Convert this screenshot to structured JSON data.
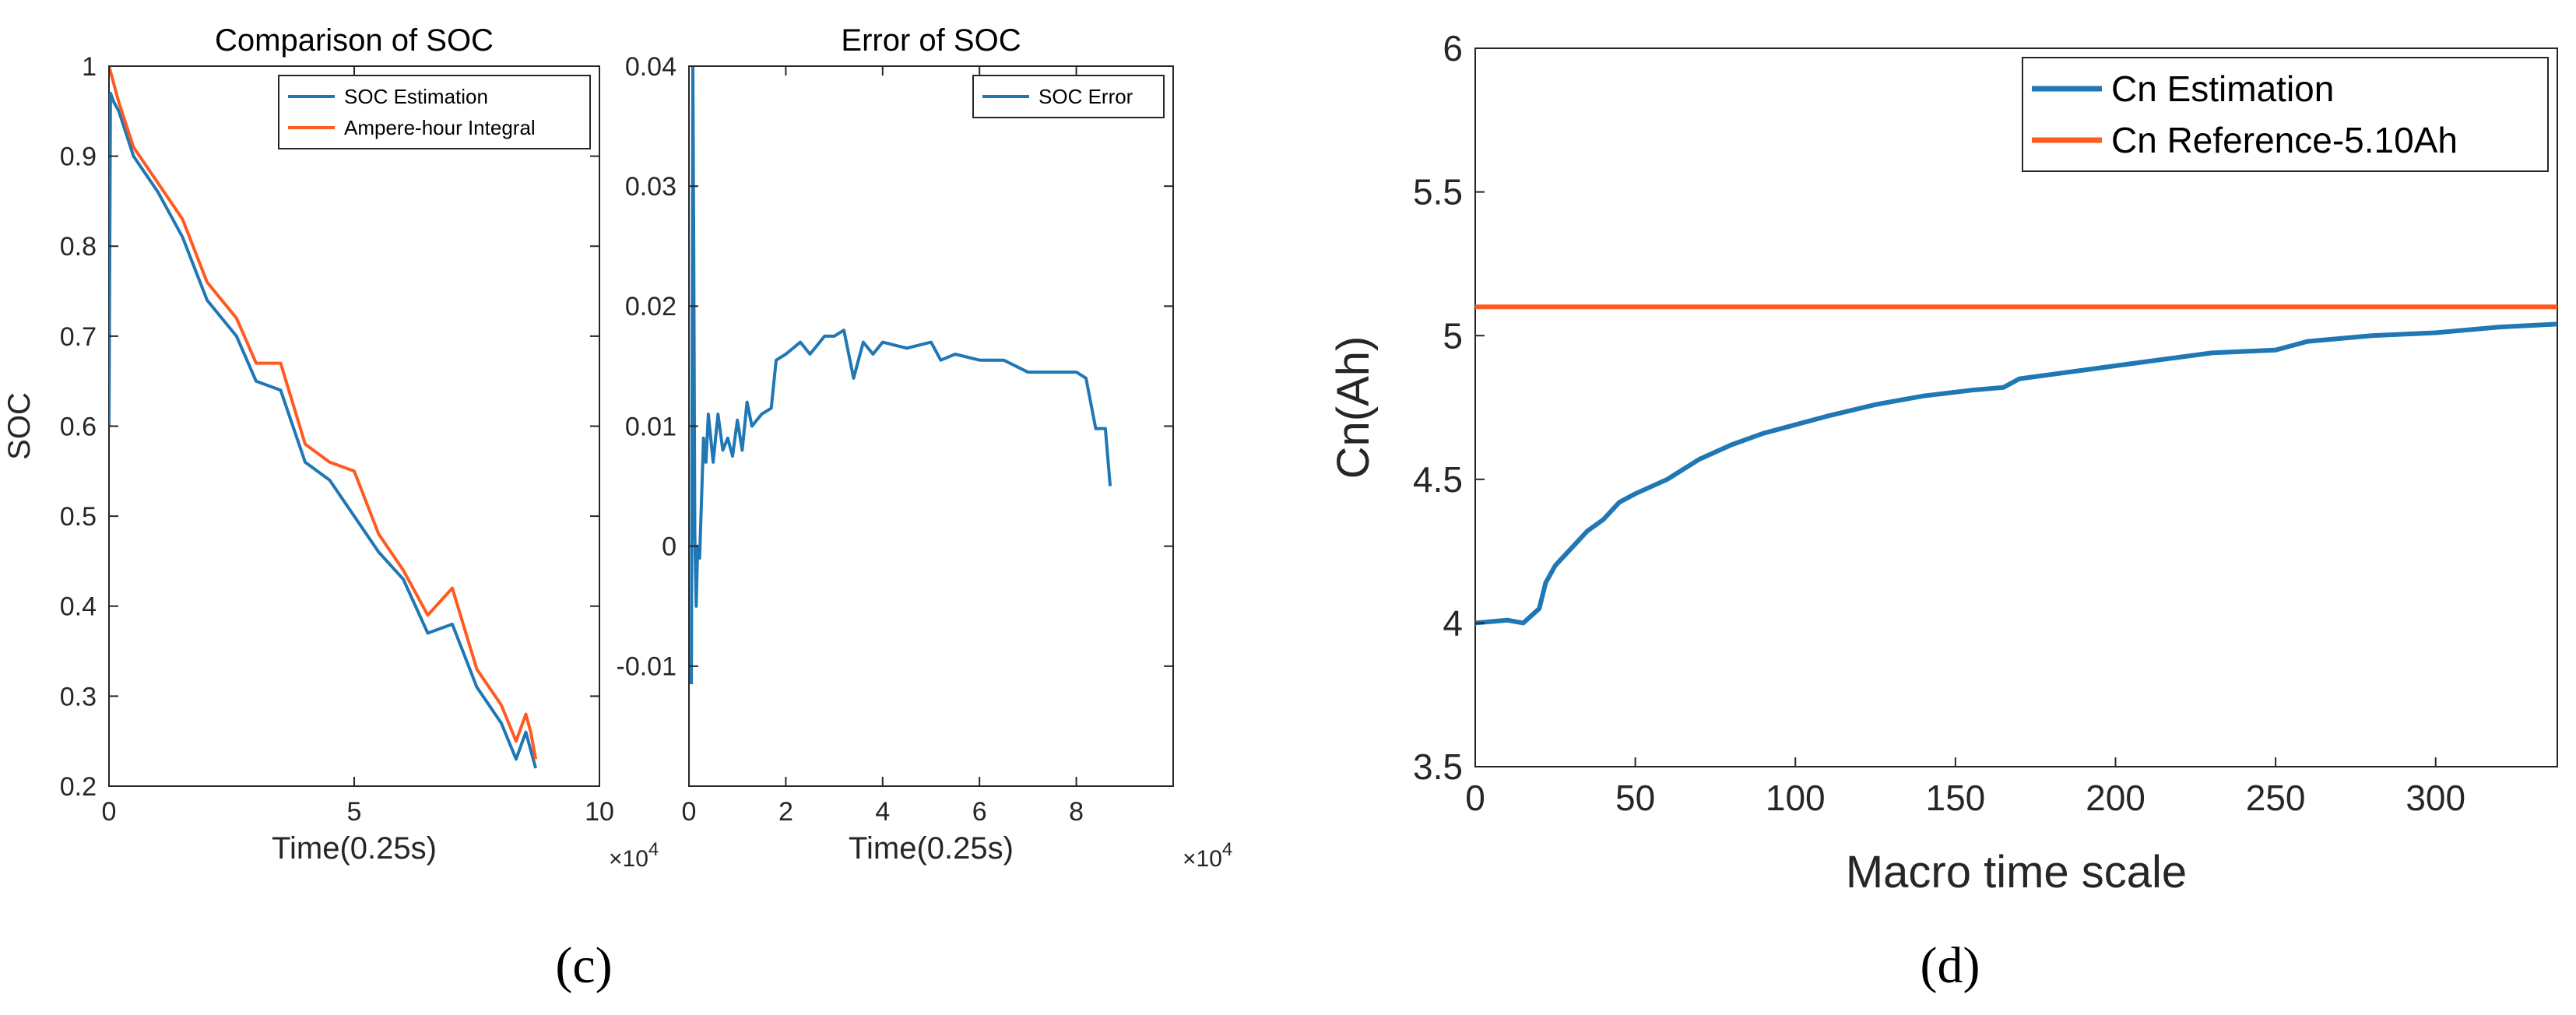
{
  "colors": {
    "blue": "#1f77b4",
    "orange": "#ff5a1f",
    "axis": "#262626",
    "text": "#262626"
  },
  "panels": [
    {
      "id": "c",
      "label": "(c)"
    },
    {
      "id": "d",
      "label": "(d)"
    }
  ],
  "chart_data": [
    {
      "type": "line",
      "panel": "c",
      "title": "Comparison of SOC",
      "xlabel": "Time(0.25s)",
      "ylabel": "SOC",
      "x_exponent": "×10^4",
      "xlim": [
        0,
        10
      ],
      "ylim": [
        0.2,
        1.0
      ],
      "xticks": [
        0,
        5,
        10
      ],
      "xtick_labels": [
        "0",
        "5",
        "10"
      ],
      "yticks": [
        0.2,
        0.3,
        0.4,
        0.5,
        0.6,
        0.7,
        0.8,
        0.9,
        1.0
      ],
      "ytick_labels": [
        "0.2",
        "0.3",
        "0.4",
        "0.5",
        "0.6",
        "0.7",
        "0.8",
        "0.9",
        "1"
      ],
      "legend": "top-right",
      "series": [
        {
          "name": "SOC Estimation",
          "color": "#1f77b4",
          "x": [
            0,
            0.03,
            0.1,
            0.2,
            0.5,
            1.0,
            1.5,
            2.0,
            2.6,
            3.0,
            3.5,
            4.0,
            4.5,
            5.0,
            5.5,
            6.0,
            6.5,
            7.0,
            7.5,
            8.0,
            8.3,
            8.5,
            8.6,
            8.7
          ],
          "y": [
            0.6,
            0.97,
            0.96,
            0.95,
            0.9,
            0.86,
            0.81,
            0.74,
            0.7,
            0.65,
            0.64,
            0.56,
            0.54,
            0.5,
            0.46,
            0.43,
            0.37,
            0.38,
            0.31,
            0.27,
            0.23,
            0.26,
            0.24,
            0.22
          ]
        },
        {
          "name": "Ampere-hour Integral",
          "color": "#ff5a1f",
          "x": [
            0,
            0.1,
            0.2,
            0.5,
            1.0,
            1.5,
            2.0,
            2.6,
            3.0,
            3.5,
            4.0,
            4.5,
            5.0,
            5.5,
            6.0,
            6.5,
            7.0,
            7.5,
            8.0,
            8.3,
            8.5,
            8.6,
            8.7
          ],
          "y": [
            1.0,
            0.98,
            0.96,
            0.91,
            0.87,
            0.83,
            0.76,
            0.72,
            0.67,
            0.67,
            0.58,
            0.56,
            0.55,
            0.48,
            0.44,
            0.39,
            0.42,
            0.33,
            0.29,
            0.25,
            0.28,
            0.26,
            0.23
          ]
        }
      ]
    },
    {
      "type": "line",
      "panel": "c",
      "title": "Error of SOC",
      "xlabel": "Time(0.25s)",
      "x_exponent": "×10^4",
      "xlim": [
        0,
        10
      ],
      "ylim": [
        -0.02,
        0.04
      ],
      "xticks": [
        0,
        2,
        4,
        6,
        8
      ],
      "xtick_labels": [
        "0",
        "2",
        "4",
        "6",
        "8"
      ],
      "yticks": [
        -0.01,
        0,
        0.01,
        0.02,
        0.03,
        0.04
      ],
      "ytick_labels": [
        "-0.01",
        "0",
        "0.01",
        "0.02",
        "0.03",
        "0.04"
      ],
      "legend": "top-right",
      "series": [
        {
          "name": "SOC Error",
          "color": "#1f77b4",
          "x": [
            0.05,
            0.08,
            0.1,
            0.12,
            0.15,
            0.18,
            0.22,
            0.3,
            0.35,
            0.4,
            0.5,
            0.6,
            0.7,
            0.8,
            0.9,
            1.0,
            1.1,
            1.2,
            1.3,
            1.5,
            1.7,
            1.8,
            2.0,
            2.3,
            2.5,
            2.8,
            3.0,
            3.2,
            3.4,
            3.6,
            3.8,
            4.0,
            4.5,
            5.0,
            5.2,
            5.5,
            6.0,
            6.5,
            7.0,
            7.5,
            8.0,
            8.2,
            8.4,
            8.6,
            8.7
          ],
          "y": [
            -0.0115,
            0.04,
            0.024,
            0.001,
            -0.005,
            0.0,
            -0.001,
            0.009,
            0.007,
            0.011,
            0.007,
            0.011,
            0.008,
            0.009,
            0.0075,
            0.0105,
            0.008,
            0.012,
            0.01,
            0.011,
            0.0115,
            0.0155,
            0.016,
            0.017,
            0.016,
            0.0175,
            0.0175,
            0.018,
            0.014,
            0.017,
            0.016,
            0.017,
            0.0165,
            0.017,
            0.0155,
            0.016,
            0.0155,
            0.0155,
            0.0145,
            0.0145,
            0.0145,
            0.014,
            0.0098,
            0.0098,
            0.005
          ]
        }
      ]
    },
    {
      "type": "line",
      "panel": "d",
      "title": "",
      "xlabel": "Macro time scale",
      "ylabel": "Cn(Ah)",
      "xlim": [
        0,
        338
      ],
      "ylim": [
        3.5,
        6.0
      ],
      "xticks": [
        0,
        50,
        100,
        150,
        200,
        250,
        300
      ],
      "xtick_labels": [
        "0",
        "50",
        "100",
        "150",
        "200",
        "250",
        "300"
      ],
      "yticks": [
        3.5,
        4.0,
        4.5,
        5.0,
        5.5,
        6.0
      ],
      "ytick_labels": [
        "3.5",
        "4",
        "4.5",
        "5",
        "5.5",
        "6"
      ],
      "legend": "top-right",
      "series": [
        {
          "name": "Cn Estimation",
          "color": "#1f77b4",
          "x": [
            0,
            10,
            15,
            20,
            22,
            25,
            30,
            35,
            40,
            45,
            50,
            60,
            70,
            80,
            90,
            100,
            110,
            125,
            140,
            155,
            165,
            170,
            190,
            210,
            230,
            250,
            260,
            280,
            300,
            320,
            338
          ],
          "y": [
            4.0,
            4.01,
            4.0,
            4.05,
            4.14,
            4.2,
            4.26,
            4.32,
            4.36,
            4.42,
            4.45,
            4.5,
            4.57,
            4.62,
            4.66,
            4.69,
            4.72,
            4.76,
            4.79,
            4.81,
            4.82,
            4.85,
            4.88,
            4.91,
            4.94,
            4.95,
            4.98,
            5.0,
            5.01,
            5.03,
            5.04
          ]
        },
        {
          "name": "Cn Reference-5.10Ah",
          "color": "#ff5a1f",
          "x": [
            0,
            338
          ],
          "y": [
            5.1,
            5.1
          ]
        }
      ]
    }
  ]
}
